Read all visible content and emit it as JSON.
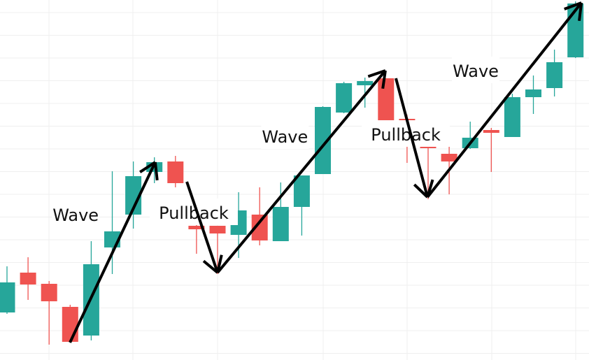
{
  "chart_data": {
    "type": "candlestick",
    "title": "",
    "xlabel": "",
    "ylabel": "",
    "grid": true,
    "colors": {
      "up": "#26a69a",
      "down": "#ef5350",
      "annotation": "#000000",
      "grid": "#efefef"
    },
    "ylim": [
      0,
      103
    ],
    "candles": [
      {
        "o": 13.6,
        "h": 26.8,
        "l": 13.2,
        "c": 22.2
      },
      {
        "o": 25.0,
        "h": 29.4,
        "l": 17.2,
        "c": 21.6
      },
      {
        "o": 21.8,
        "h": 22.6,
        "l": 4.4,
        "c": 16.8
      },
      {
        "o": 15.2,
        "h": 15.8,
        "l": 5.2,
        "c": 5.2
      },
      {
        "o": 7.0,
        "h": 34.0,
        "l": 5.6,
        "c": 27.4
      },
      {
        "o": 32.2,
        "h": 54.0,
        "l": 24.6,
        "c": 36.8
      },
      {
        "o": 41.6,
        "h": 56.8,
        "l": 37.6,
        "c": 52.6
      },
      {
        "o": 53.8,
        "h": 58.0,
        "l": 50.6,
        "c": 56.6
      },
      {
        "o": 56.8,
        "h": 58.4,
        "l": 49.4,
        "c": 50.6
      },
      {
        "o": 38.4,
        "h": 45.0,
        "l": 30.4,
        "c": 37.4
      },
      {
        "o": 38.4,
        "h": 38.4,
        "l": 24.6,
        "c": 36.2
      },
      {
        "o": 35.8,
        "h": 48.0,
        "l": 29.2,
        "c": 42.8
      },
      {
        "o": 41.6,
        "h": 49.4,
        "l": 32.8,
        "c": 34.2
      },
      {
        "o": 34.0,
        "h": 50.8,
        "l": 34.0,
        "c": 43.8
      },
      {
        "o": 43.8,
        "h": 52.8,
        "l": 35.6,
        "c": 52.8
      },
      {
        "o": 53.2,
        "h": 72.6,
        "l": 53.2,
        "c": 72.4
      },
      {
        "o": 70.8,
        "h": 79.6,
        "l": 70.6,
        "c": 79.2
      },
      {
        "o": 78.6,
        "h": 80.8,
        "l": 72.2,
        "c": 79.8
      },
      {
        "o": 80.6,
        "h": 80.6,
        "l": 68.2,
        "c": 68.2
      },
      {
        "o": 69.0,
        "h": 70.2,
        "l": 56.4,
        "c": 68.2
      },
      {
        "o": 62.0,
        "h": 63.0,
        "l": 46.0,
        "c": 60.6
      },
      {
        "o": 59.0,
        "h": 61.6,
        "l": 47.4,
        "c": 56.8
      },
      {
        "o": 60.6,
        "h": 68.2,
        "l": 60.4,
        "c": 63.6
      },
      {
        "o": 65.8,
        "h": 66.4,
        "l": 53.8,
        "c": 65.0
      },
      {
        "o": 63.8,
        "h": 76.2,
        "l": 63.8,
        "c": 75.2
      },
      {
        "o": 75.2,
        "h": 81.4,
        "l": 70.4,
        "c": 77.4
      },
      {
        "o": 77.8,
        "h": 88.8,
        "l": 75.4,
        "c": 85.2
      },
      {
        "o": 86.6,
        "h": 102.6,
        "l": 86.4,
        "c": 102.0
      }
    ],
    "arrows": [
      {
        "from": [
          3.99,
          5.0
        ],
        "to": [
          8.04,
          56.6
        ]
      },
      {
        "from": [
          9.54,
          51.0
        ],
        "to": [
          11.0,
          25.0
        ]
      },
      {
        "from": [
          11.0,
          25.0
        ],
        "to": [
          18.97,
          82.8
        ]
      },
      {
        "from": [
          19.47,
          80.6
        ],
        "to": [
          20.97,
          46.6
        ]
      },
      {
        "from": [
          20.97,
          46.6
        ],
        "to": [
          28.28,
          102.2
        ]
      }
    ],
    "annotations": [
      {
        "text": "Wave",
        "at": [
          4.26,
          41.6
        ]
      },
      {
        "text": "Pullback",
        "at": [
          9.87,
          42.2
        ]
      },
      {
        "text": "Wave",
        "at": [
          14.2,
          64.0
        ]
      },
      {
        "text": "Pullback",
        "at": [
          19.94,
          64.6
        ]
      },
      {
        "text": "Wave",
        "at": [
          23.26,
          82.8
        ]
      }
    ]
  }
}
